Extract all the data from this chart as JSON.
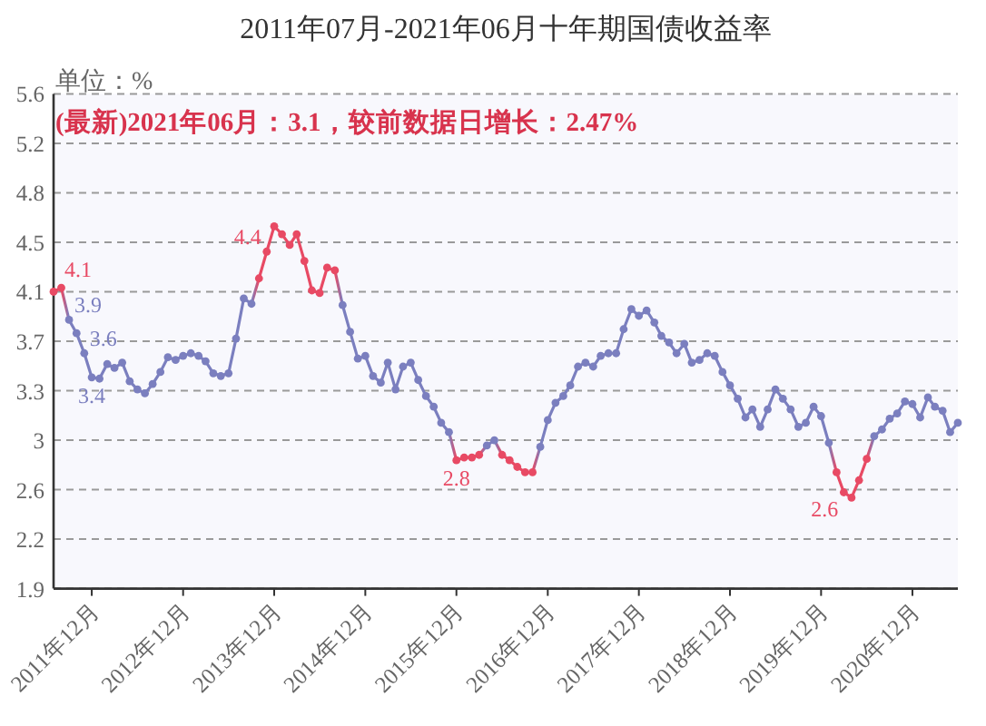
{
  "chart_data": {
    "type": "line",
    "title": "2011年07月-2021年06月十年期国债收益率",
    "ylabel": "单位：%",
    "annotations": [
      "(最新)2021年06月：3.1，较前数据日增长：2.47%"
    ],
    "x": [
      "2011-07",
      "2011-08",
      "2011-09",
      "2011-10",
      "2011-11",
      "2011-12",
      "2012-01",
      "2012-02",
      "2012-03",
      "2012-04",
      "2012-05",
      "2012-06",
      "2012-07",
      "2012-08",
      "2012-09",
      "2012-10",
      "2012-11",
      "2012-12",
      "2013-01",
      "2013-02",
      "2013-03",
      "2013-04",
      "2013-05",
      "2013-06",
      "2013-07",
      "2013-08",
      "2013-09",
      "2013-10",
      "2013-11",
      "2013-12",
      "2014-01",
      "2014-02",
      "2014-03",
      "2014-04",
      "2014-05",
      "2014-06",
      "2014-07",
      "2014-08",
      "2014-09",
      "2014-10",
      "2014-11",
      "2014-12",
      "2015-01",
      "2015-02",
      "2015-03",
      "2015-04",
      "2015-05",
      "2015-06",
      "2015-07",
      "2015-08",
      "2015-09",
      "2015-10",
      "2015-11",
      "2015-12",
      "2016-01",
      "2016-02",
      "2016-03",
      "2016-04",
      "2016-05",
      "2016-06",
      "2016-07",
      "2016-08",
      "2016-09",
      "2016-10",
      "2016-11",
      "2016-12",
      "2017-01",
      "2017-02",
      "2017-03",
      "2017-04",
      "2017-05",
      "2017-06",
      "2017-07",
      "2017-08",
      "2017-09",
      "2017-10",
      "2017-11",
      "2017-12",
      "2018-01",
      "2018-02",
      "2018-03",
      "2018-04",
      "2018-05",
      "2018-06",
      "2018-07",
      "2018-08",
      "2018-09",
      "2018-10",
      "2018-11",
      "2018-12",
      "2019-01",
      "2019-02",
      "2019-03",
      "2019-04",
      "2019-05",
      "2019-06",
      "2019-07",
      "2019-08",
      "2019-09",
      "2019-10",
      "2019-11",
      "2019-12",
      "2020-01",
      "2020-02",
      "2020-03",
      "2020-04",
      "2020-05",
      "2020-06",
      "2020-07",
      "2020-08",
      "2020-09",
      "2020-10",
      "2020-11",
      "2020-12",
      "2021-01",
      "2021-02",
      "2021-03",
      "2021-04",
      "2021-05",
      "2021-06"
    ],
    "series": [
      {
        "values": [
          4.08,
          4.11,
          3.87,
          3.77,
          3.62,
          3.44,
          3.43,
          3.54,
          3.51,
          3.55,
          3.41,
          3.35,
          3.32,
          3.39,
          3.48,
          3.59,
          3.57,
          3.6,
          3.62,
          3.6,
          3.56,
          3.47,
          3.45,
          3.47,
          3.73,
          4.03,
          3.99,
          4.18,
          4.38,
          4.57,
          4.51,
          4.43,
          4.51,
          4.31,
          4.09,
          4.07,
          4.26,
          4.24,
          3.98,
          3.78,
          3.58,
          3.6,
          3.45,
          3.4,
          3.55,
          3.35,
          3.52,
          3.55,
          3.42,
          3.3,
          3.22,
          3.1,
          3.03,
          2.82,
          2.84,
          2.84,
          2.86,
          2.93,
          2.97,
          2.86,
          2.82,
          2.77,
          2.73,
          2.73,
          2.92,
          3.12,
          3.25,
          3.3,
          3.38,
          3.52,
          3.55,
          3.52,
          3.6,
          3.62,
          3.62,
          3.8,
          3.95,
          3.9,
          3.94,
          3.85,
          3.75,
          3.7,
          3.62,
          3.69,
          3.55,
          3.57,
          3.62,
          3.6,
          3.48,
          3.38,
          3.28,
          3.14,
          3.2,
          3.07,
          3.2,
          3.35,
          3.28,
          3.2,
          3.07,
          3.1,
          3.22,
          3.15,
          2.95,
          2.73,
          2.58,
          2.54,
          2.67,
          2.83,
          3.0,
          3.05,
          3.13,
          3.17,
          3.26,
          3.24,
          3.14,
          3.29,
          3.22,
          3.19,
          3.03,
          3.1
        ],
        "colors": [
          "#e84a64",
          "#e84a64",
          "#7b7fbf",
          "#7b7fbf",
          "#7b7fbf",
          "#7b7fbf",
          "#7b7fbf",
          "#7b7fbf",
          "#7b7fbf",
          "#7b7fbf",
          "#7b7fbf",
          "#7b7fbf",
          "#7b7fbf",
          "#7b7fbf",
          "#7b7fbf",
          "#7b7fbf",
          "#7b7fbf",
          "#7b7fbf",
          "#7b7fbf",
          "#7b7fbf",
          "#7b7fbf",
          "#7b7fbf",
          "#7b7fbf",
          "#7b7fbf",
          "#7b7fbf",
          "#7b7fbf",
          "#7b7fbf",
          "#e84a64",
          "#e84a64",
          "#e84a64",
          "#e84a64",
          "#e84a64",
          "#e84a64",
          "#e84a64",
          "#e84a64",
          "#e84a64",
          "#e84a64",
          "#e84a64",
          "#7b7fbf",
          "#7b7fbf",
          "#7b7fbf",
          "#7b7fbf",
          "#7b7fbf",
          "#7b7fbf",
          "#7b7fbf",
          "#7b7fbf",
          "#7b7fbf",
          "#7b7fbf",
          "#7b7fbf",
          "#7b7fbf",
          "#7b7fbf",
          "#7b7fbf",
          "#7b7fbf",
          "#e84a64",
          "#e84a64",
          "#e84a64",
          "#e84a64",
          "#7b7fbf",
          "#7b7fbf",
          "#e84a64",
          "#e84a64",
          "#e84a64",
          "#e84a64",
          "#e84a64",
          "#7b7fbf",
          "#7b7fbf",
          "#7b7fbf",
          "#7b7fbf",
          "#7b7fbf",
          "#7b7fbf",
          "#7b7fbf",
          "#7b7fbf",
          "#7b7fbf",
          "#7b7fbf",
          "#7b7fbf",
          "#7b7fbf",
          "#7b7fbf",
          "#7b7fbf",
          "#7b7fbf",
          "#7b7fbf",
          "#7b7fbf",
          "#7b7fbf",
          "#7b7fbf",
          "#7b7fbf",
          "#7b7fbf",
          "#7b7fbf",
          "#7b7fbf",
          "#7b7fbf",
          "#7b7fbf",
          "#7b7fbf",
          "#7b7fbf",
          "#7b7fbf",
          "#7b7fbf",
          "#7b7fbf",
          "#7b7fbf",
          "#7b7fbf",
          "#7b7fbf",
          "#7b7fbf",
          "#7b7fbf",
          "#7b7fbf",
          "#7b7fbf",
          "#7b7fbf",
          "#7b7fbf",
          "#e84a64",
          "#e84a64",
          "#e84a64",
          "#e84a64",
          "#e84a64",
          "#7b7fbf",
          "#7b7fbf",
          "#7b7fbf",
          "#7b7fbf",
          "#7b7fbf",
          "#7b7fbf",
          "#7b7fbf",
          "#7b7fbf",
          "#7b7fbf",
          "#7b7fbf",
          "#7b7fbf",
          "#7b7fbf"
        ],
        "value_labels": [
          "4.1",
          null,
          "3.9",
          null,
          "3.6",
          "3.4",
          null,
          null,
          null,
          null,
          null,
          null,
          null,
          null,
          null,
          null,
          null,
          null,
          null,
          null,
          null,
          null,
          null,
          null,
          null,
          null,
          null,
          null,
          "4.4",
          null,
          null,
          null,
          null,
          null,
          null,
          null,
          null,
          null,
          null,
          null,
          null,
          null,
          null,
          null,
          null,
          null,
          null,
          null,
          null,
          null,
          null,
          null,
          null,
          "2.8",
          null,
          null,
          null,
          null,
          null,
          null,
          null,
          null,
          null,
          null,
          null,
          null,
          null,
          null,
          null,
          null,
          null,
          null,
          null,
          null,
          null,
          null,
          null,
          null,
          null,
          null,
          null,
          null,
          null,
          null,
          null,
          null,
          null,
          null,
          null,
          null,
          null,
          null,
          null,
          null,
          null,
          null,
          null,
          null,
          null,
          null,
          null,
          null,
          null,
          null,
          "2.6",
          null,
          null,
          null,
          null,
          null,
          null,
          null,
          null,
          null,
          null,
          null,
          null,
          null,
          null,
          null
        ]
      }
    ],
    "xlim": [
      "2011-07",
      "2021-06"
    ],
    "xticks": [
      {
        "value": "2011-12",
        "label": "2011年12月"
      },
      {
        "value": "2012-12",
        "label": "2012年12月"
      },
      {
        "value": "2013-12",
        "label": "2013年12月"
      },
      {
        "value": "2014-12",
        "label": "2014年12月"
      },
      {
        "value": "2015-12",
        "label": "2015年12月"
      },
      {
        "value": "2016-12",
        "label": "2016年12月"
      },
      {
        "value": "2017-12",
        "label": "2017年12月"
      },
      {
        "value": "2018-12",
        "label": "2018年12月"
      },
      {
        "value": "2019-12",
        "label": "2019年12月"
      },
      {
        "value": "2020-12",
        "label": "2020年12月"
      }
    ],
    "ylim": [
      1.86,
      5.56
    ],
    "yticks": [
      {
        "value": 1.86,
        "label": "1.9"
      },
      {
        "value": 2.23,
        "label": "2.2"
      },
      2.6,
      {
        "value": 2.97,
        "label": "3"
      },
      {
        "value": 3.34,
        "label": "3.3"
      },
      {
        "value": 3.71,
        "label": "3.7"
      },
      {
        "value": 4.08,
        "label": "4.1"
      },
      {
        "value": 4.45,
        "label": "4.5"
      },
      {
        "value": 4.82,
        "label": "4.8"
      },
      {
        "value": 5.19,
        "label": "5.2"
      },
      {
        "value": 5.56,
        "label": "5.6"
      }
    ],
    "grid": "y",
    "marker": "circle"
  }
}
